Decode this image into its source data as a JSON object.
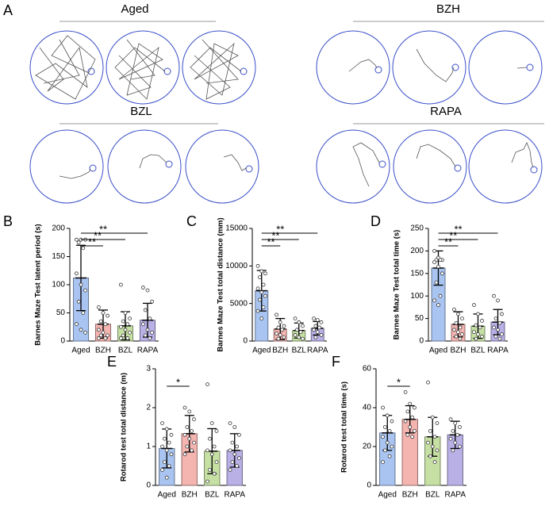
{
  "panel_a": {
    "label": "A",
    "groups": [
      "Aged",
      "BZH",
      "BZL",
      "RAPA"
    ]
  },
  "chart_data": [
    {
      "panel": "B",
      "type": "bar",
      "ylabel": "Barnes Maze Test latent period (s)",
      "categories": [
        "Aged",
        "BZH",
        "BZL",
        "RAPA"
      ],
      "colors": [
        "#a9c4f0",
        "#f4b4b0",
        "#c6e0a4",
        "#b9b0e6"
      ],
      "values": [
        112,
        30,
        27,
        37
      ],
      "errors": [
        58,
        25,
        25,
        30
      ],
      "points": [
        [
          180,
          180,
          180,
          175,
          165,
          120,
          100,
          90,
          70,
          50,
          30,
          20,
          15
        ],
        [
          60,
          50,
          45,
          35,
          30,
          20,
          15,
          10,
          10,
          5,
          5
        ],
        [
          100,
          50,
          40,
          35,
          30,
          25,
          20,
          15,
          10,
          5,
          5
        ],
        [
          95,
          90,
          70,
          55,
          40,
          30,
          20,
          15,
          10,
          5
        ]
      ],
      "ylim": [
        0,
        200
      ],
      "yticks": [
        0,
        50,
        100,
        150,
        200
      ],
      "significance": [
        {
          "pair": [
            "Aged",
            "BZH"
          ],
          "label": "**"
        },
        {
          "pair": [
            "Aged",
            "BZL"
          ],
          "label": "**"
        },
        {
          "pair": [
            "Aged",
            "RAPA"
          ],
          "label": "**"
        }
      ]
    },
    {
      "panel": "C",
      "type": "bar",
      "ylabel": "Barnes Maze Test total distance (mm)",
      "categories": [
        "Aged",
        "BZH",
        "BZL",
        "RAPA"
      ],
      "colors": [
        "#a9c4f0",
        "#f4b4b0",
        "#c6e0a4",
        "#b9b0e6"
      ],
      "values": [
        6700,
        1600,
        1400,
        1700
      ],
      "errors": [
        2700,
        1400,
        1000,
        900
      ],
      "points": [
        [
          10000,
          9300,
          9000,
          8500,
          7500,
          7000,
          6500,
          6000,
          5500,
          4500,
          4000,
          3000
        ],
        [
          3500,
          2500,
          2000,
          1800,
          1500,
          1000,
          800,
          500,
          300
        ],
        [
          3000,
          2500,
          2000,
          1500,
          1200,
          800,
          500,
          300
        ],
        [
          3000,
          2800,
          2500,
          2000,
          1800,
          1500,
          1200,
          800,
          500
        ]
      ],
      "ylim": [
        0,
        15000
      ],
      "yticks": [
        0,
        5000,
        10000,
        15000
      ],
      "significance": [
        {
          "pair": [
            "Aged",
            "BZH"
          ],
          "label": "**"
        },
        {
          "pair": [
            "Aged",
            "BZL"
          ],
          "label": "**"
        },
        {
          "pair": [
            "Aged",
            "RAPA"
          ],
          "label": "**"
        }
      ]
    },
    {
      "panel": "D",
      "type": "bar",
      "ylabel": "Barnes Maze Test total time (s)",
      "categories": [
        "Aged",
        "BZH",
        "BZL",
        "RAPA"
      ],
      "colors": [
        "#a9c4f0",
        "#f4b4b0",
        "#c6e0a4",
        "#b9b0e6"
      ],
      "values": [
        162,
        37,
        33,
        42
      ],
      "errors": [
        38,
        28,
        27,
        28
      ],
      "points": [
        [
          200,
          185,
          180,
          180,
          180,
          175,
          165,
          150,
          130,
          100,
          90,
          80
        ],
        [
          70,
          60,
          50,
          40,
          30,
          25,
          20,
          15,
          10,
          5
        ],
        [
          80,
          60,
          45,
          35,
          30,
          20,
          15,
          10,
          5
        ],
        [
          100,
          90,
          60,
          50,
          40,
          30,
          25,
          15,
          10,
          5
        ]
      ],
      "ylim": [
        0,
        250
      ],
      "yticks": [
        0,
        50,
        100,
        150,
        200,
        250
      ],
      "significance": [
        {
          "pair": [
            "Aged",
            "BZH"
          ],
          "label": "**"
        },
        {
          "pair": [
            "Aged",
            "BZL"
          ],
          "label": "**"
        },
        {
          "pair": [
            "Aged",
            "RAPA"
          ],
          "label": "**"
        }
      ]
    },
    {
      "panel": "E",
      "type": "bar",
      "ylabel": "Rotarod test total distance (m)",
      "categories": [
        "Aged",
        "BZH",
        "BZL",
        "RAPA"
      ],
      "colors": [
        "#a9c4f0",
        "#f4b4b0",
        "#c6e0a4",
        "#b9b0e6"
      ],
      "values": [
        0.95,
        1.33,
        0.88,
        0.9
      ],
      "errors": [
        0.5,
        0.47,
        0.58,
        0.43
      ],
      "points": [
        [
          1.6,
          1.45,
          1.3,
          1.2,
          1.1,
          1.0,
          0.9,
          0.8,
          0.6,
          0.5,
          0.4,
          0.2
        ],
        [
          2.0,
          1.9,
          1.7,
          1.5,
          1.4,
          1.3,
          1.2,
          1.1,
          1.0,
          0.9,
          0.8
        ],
        [
          2.6,
          1.6,
          1.4,
          1.2,
          1.0,
          0.9,
          0.8,
          0.6,
          0.4,
          0.3,
          0.1
        ],
        [
          1.6,
          1.5,
          1.3,
          1.1,
          1.0,
          0.9,
          0.8,
          0.7,
          0.6,
          0.5,
          0.4
        ]
      ],
      "ylim": [
        0,
        3
      ],
      "yticks": [
        0,
        1,
        2,
        3
      ],
      "significance": [
        {
          "pair": [
            "Aged",
            "BZH"
          ],
          "label": "*"
        }
      ]
    },
    {
      "panel": "F",
      "type": "bar",
      "ylabel": "Rotarod test total time (s)",
      "categories": [
        "Aged",
        "BZH",
        "BZL",
        "RAPA"
      ],
      "colors": [
        "#a9c4f0",
        "#f4b4b0",
        "#c6e0a4",
        "#b9b0e6"
      ],
      "values": [
        27,
        34,
        25,
        26
      ],
      "errors": [
        9,
        7,
        10,
        7
      ],
      "points": [
        [
          40,
          36,
          33,
          30,
          28,
          25,
          22,
          20,
          18,
          15,
          12
        ],
        [
          48,
          42,
          40,
          38,
          35,
          33,
          30,
          28,
          26,
          25
        ],
        [
          53,
          35,
          32,
          28,
          25,
          22,
          20,
          18,
          15,
          12
        ],
        [
          34,
          32,
          30,
          28,
          26,
          24,
          22,
          20,
          18
        ]
      ],
      "ylim": [
        0,
        60
      ],
      "yticks": [
        0,
        20,
        40,
        60
      ],
      "significance": [
        {
          "pair": [
            "Aged",
            "BZH"
          ],
          "label": "*"
        }
      ]
    }
  ]
}
